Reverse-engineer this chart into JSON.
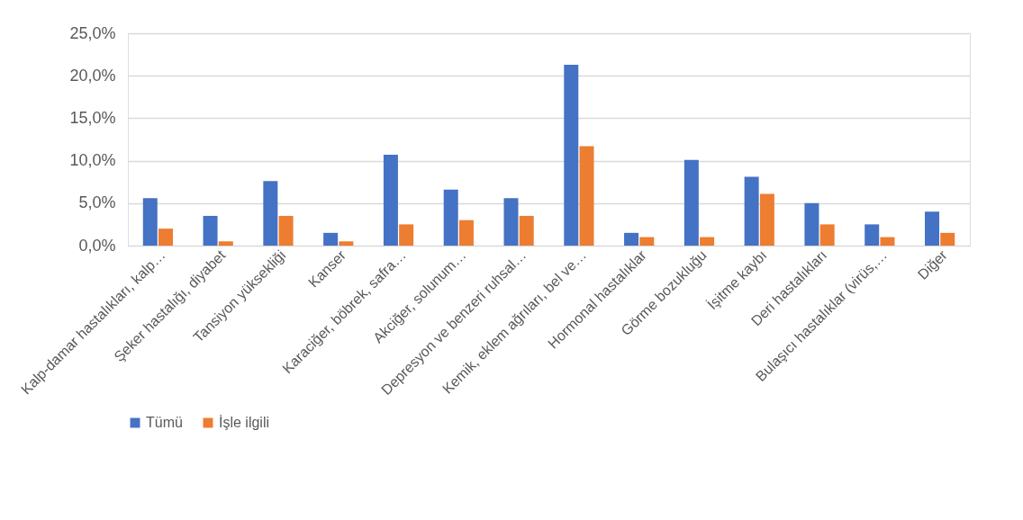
{
  "chart_data": {
    "type": "bar",
    "categories": [
      "Kalp-damar hastalıkları, kalp…",
      "Şeker hastalığı, diyabet",
      "Tansiyon yüksekliği",
      "Kanser",
      "Karaciğer, böbrek, safra…",
      "Akciğer, solunum…",
      "Depresyon ve benzeri ruhsal…",
      "Kemik, eklem ağrıları, bel ve…",
      "Hormonal hastalıklar",
      "Görme bozukluğu",
      "İşitme kaybı",
      "Deri hastalıkları",
      "Bulaşıcı hastalıklar (virüs,…",
      "Diğer"
    ],
    "series": [
      {
        "name": "Tümü",
        "color": "#4472c4",
        "values": [
          5.6,
          3.5,
          7.6,
          1.5,
          10.7,
          6.6,
          5.6,
          21.3,
          1.5,
          10.1,
          8.1,
          5.0,
          2.5,
          4.0
        ]
      },
      {
        "name": "İşle ilgili",
        "color": "#ed7d31",
        "values": [
          2.0,
          0.5,
          3.5,
          0.5,
          2.5,
          3.0,
          3.5,
          11.7,
          1.0,
          1.0,
          6.1,
          2.5,
          1.0,
          1.5
        ]
      }
    ],
    "ylim": [
      0,
      25
    ],
    "yticks": [
      {
        "value": 0,
        "label": "0,0%"
      },
      {
        "value": 5,
        "label": "5,0%"
      },
      {
        "value": 10,
        "label": "10,0%"
      },
      {
        "value": 15,
        "label": "15,0%"
      },
      {
        "value": 20,
        "label": "20,0%"
      },
      {
        "value": 25,
        "label": "25,0%"
      }
    ],
    "grid": "y",
    "legend": "bottom"
  }
}
